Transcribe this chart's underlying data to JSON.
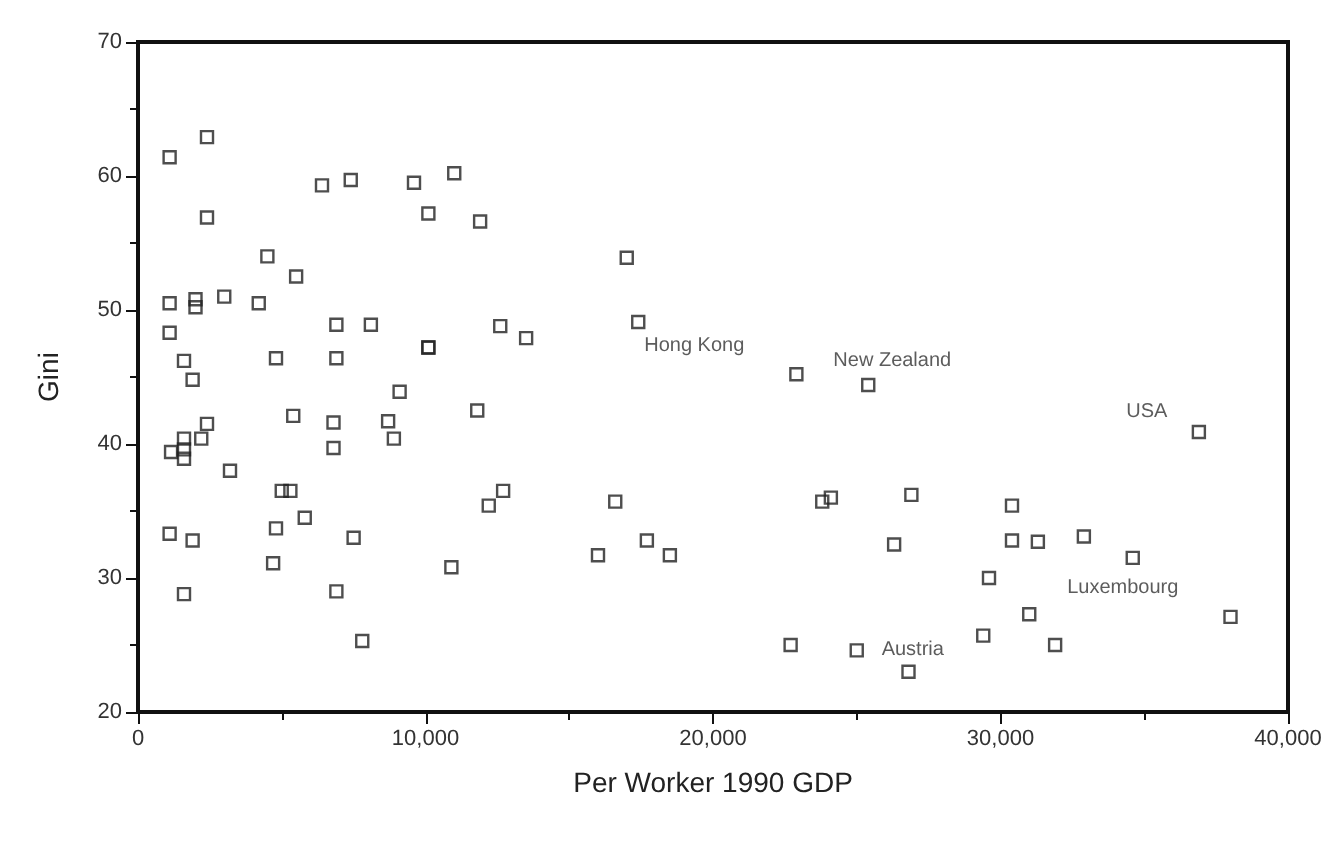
{
  "chart_data": {
    "type": "scatter",
    "xlabel": "Per Worker 1990 GDP",
    "ylabel": "Gini",
    "marker": "square",
    "grid": false,
    "xlim": [
      0,
      40000
    ],
    "ylim": [
      20,
      70
    ],
    "xticks": [
      0,
      {
        "value": 10000,
        "label": "10,000"
      },
      {
        "value": 20000,
        "label": "20,000"
      },
      {
        "value": 30000,
        "label": "30,000"
      },
      {
        "value": 40000,
        "label": "40,000"
      }
    ],
    "yticks": [
      20,
      30,
      40,
      50,
      60,
      70
    ],
    "annotations": [
      {
        "text": "Hong Kong",
        "x": 17400,
        "y": 49.1
      },
      {
        "text": "New Zealand",
        "x": 25400,
        "y": 44.4
      },
      {
        "text": "USA",
        "x": 36900,
        "y": 40.9
      },
      {
        "text": "Luxembourg",
        "x": 34600,
        "y": 31.5
      },
      {
        "text": "Austria",
        "x": 25000,
        "y": 24.6
      }
    ],
    "series": [
      {
        "color": "#222222",
        "x": [
          1100,
          2400,
          2400,
          1100,
          2000,
          2000,
          3000,
          4200,
          4500,
          5500,
          6400,
          7400,
          9600,
          11000,
          10100,
          11900,
          1100,
          6900,
          8100,
          10100,
          1600,
          4800,
          6900,
          1900,
          9100,
          2400,
          5400,
          6800,
          8700,
          8900,
          6800,
          1600,
          2200,
          1150,
          1600,
          1600,
          3200,
          5000,
          5300,
          5800,
          1100,
          1900,
          4800,
          7500,
          4700,
          1600,
          6900,
          7800,
          17000,
          12600,
          13500,
          10100,
          17400,
          22900,
          25400,
          11800,
          12700,
          12200,
          16600,
          17700,
          16000,
          18500,
          10900,
          22700,
          25000,
          26800,
          36900,
          26900,
          26300,
          23800,
          24100,
          30400,
          30400,
          31300,
          32900,
          34600,
          29600,
          31000,
          29400,
          31900,
          38000
        ],
        "values": [
          61.4,
          62.9,
          56.9,
          50.5,
          50.8,
          50.2,
          51.0,
          50.5,
          54.0,
          52.5,
          59.3,
          59.7,
          59.5,
          60.2,
          57.2,
          56.6,
          48.3,
          48.9,
          48.9,
          47.2,
          46.2,
          46.4,
          46.4,
          44.8,
          43.9,
          41.5,
          42.1,
          41.6,
          41.7,
          40.4,
          39.7,
          40.4,
          40.4,
          39.4,
          39.6,
          38.9,
          38.0,
          36.5,
          36.5,
          34.5,
          33.3,
          32.8,
          33.7,
          33.0,
          31.1,
          28.8,
          29.0,
          25.3,
          53.9,
          48.8,
          47.9,
          47.2,
          49.1,
          45.2,
          44.4,
          42.5,
          36.5,
          35.4,
          35.7,
          32.8,
          31.7,
          31.7,
          30.8,
          25.0,
          24.6,
          23.0,
          40.9,
          36.2,
          32.5,
          35.7,
          36.0,
          35.4,
          32.8,
          32.7,
          33.1,
          31.5,
          30.0,
          27.3,
          25.7,
          25.0,
          27.1
        ]
      }
    ]
  }
}
